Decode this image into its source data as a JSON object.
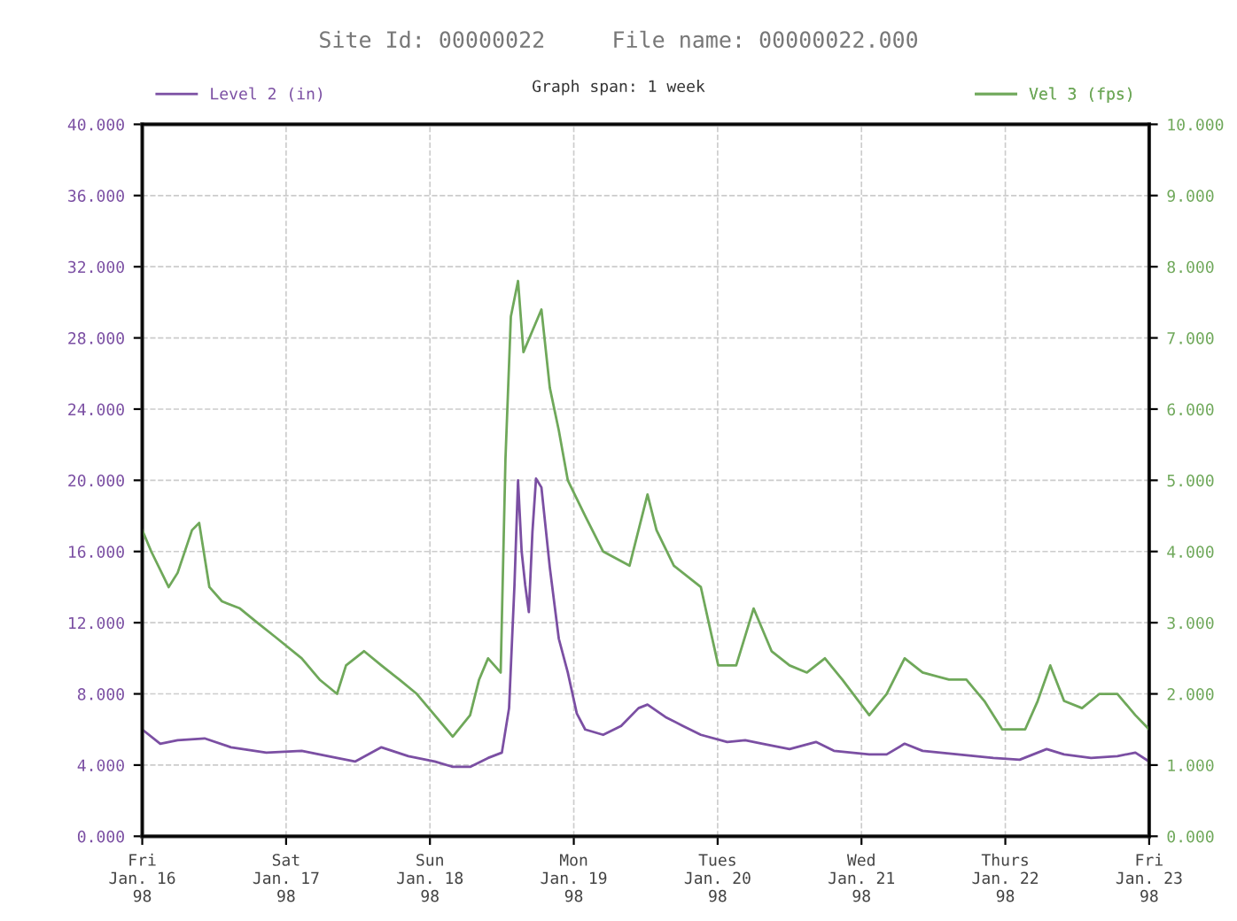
{
  "chart_data": {
    "type": "line",
    "title": "Site Id: 00000022     File name: 00000022.000",
    "annotations": [
      "Graph span: 1 week"
    ],
    "xlim": [
      "1998-01-16",
      "1998-01-23"
    ],
    "xticks": [
      {
        "value": "1998-01-16",
        "label": "Fri\nJan. 16\n98"
      },
      {
        "value": "1998-01-17",
        "label": "Sat\nJan. 17\n98"
      },
      {
        "value": "1998-01-18",
        "label": "Sun\nJan. 18\n98"
      },
      {
        "value": "1998-01-19",
        "label": "Mon\nJan. 19\n98"
      },
      {
        "value": "1998-01-20",
        "label": "Tues\nJan. 20\n98"
      },
      {
        "value": "1998-01-21",
        "label": "Wed\nJan. 21\n98"
      },
      {
        "value": "1998-01-22",
        "label": "Thurs\nJan. 22\n98"
      },
      {
        "value": "1998-01-23",
        "label": "Fri\nJan. 23\n98"
      }
    ],
    "ylim": [
      0,
      40
    ],
    "yticks": [
      {
        "value": 0,
        "label": "0.000"
      },
      {
        "value": 4,
        "label": "4.000"
      },
      {
        "value": 8,
        "label": "8.000"
      },
      {
        "value": 12,
        "label": "12.000"
      },
      {
        "value": 16,
        "label": "16.000"
      },
      {
        "value": 20,
        "label": "20.000"
      },
      {
        "value": 24,
        "label": "24.000"
      },
      {
        "value": 28,
        "label": "28.000"
      },
      {
        "value": 32,
        "label": "32.000"
      },
      {
        "value": 36,
        "label": "36.000"
      },
      {
        "value": 40,
        "label": "40.000"
      }
    ],
    "y2lim": [
      0,
      10
    ],
    "y2ticks": [
      {
        "value": 0,
        "label": "0.000"
      },
      {
        "value": 1,
        "label": "1.000"
      },
      {
        "value": 2,
        "label": "2.000"
      },
      {
        "value": 3,
        "label": "3.000"
      },
      {
        "value": 4,
        "label": "4.000"
      },
      {
        "value": 5,
        "label": "5.000"
      },
      {
        "value": 6,
        "label": "6.000"
      },
      {
        "value": 7,
        "label": "7.000"
      },
      {
        "value": 8,
        "label": "8.000"
      },
      {
        "value": 9,
        "label": "9.000"
      },
      {
        "value": 10,
        "label": "10.000"
      }
    ],
    "grid": true,
    "legend": "top",
    "line_style": "solid",
    "series": [
      {
        "name": "Level 2 (in)",
        "color": "#7b4fa3",
        "x": [
          "1998-01-16T00:00",
          "1998-01-16T03:00",
          "1998-01-16T05:54",
          "1998-01-16T10:24",
          "1998-01-16T14:48",
          "1998-01-16T20:42",
          "1998-01-17T02:36",
          "1998-01-17T08:30",
          "1998-01-17T11:30",
          "1998-01-17T15:54",
          "1998-01-17T20:24",
          "1998-01-18T00:48",
          "1998-01-18T03:48",
          "1998-01-18T06:42",
          "1998-01-18T09:42",
          "1998-01-18T12:00",
          "1998-01-18T13:12",
          "1998-01-18T14:06",
          "1998-01-18T14:42",
          "1998-01-18T15:18",
          "1998-01-18T15:54",
          "1998-01-18T16:30",
          "1998-01-18T17:06",
          "1998-01-18T17:42",
          "1998-01-18T18:36",
          "1998-01-18T20:00",
          "1998-01-18T21:30",
          "1998-01-18T23:00",
          "1998-01-19T00:30",
          "1998-01-19T01:54",
          "1998-01-19T04:54",
          "1998-01-19T07:54",
          "1998-01-19T10:48",
          "1998-01-19T12:18",
          "1998-01-19T15:18",
          "1998-01-19T18:12",
          "1998-01-19T21:12",
          "1998-01-20T01:36",
          "1998-01-20T04:36",
          "1998-01-20T07:30",
          "1998-01-20T12:00",
          "1998-01-20T16:24",
          "1998-01-20T19:24",
          "1998-01-21T01:18",
          "1998-01-21T04:12",
          "1998-01-21T07:12",
          "1998-01-21T10:12",
          "1998-01-21T16:06",
          "1998-01-21T22:00",
          "1998-01-22T02:24",
          "1998-01-22T06:54",
          "1998-01-22T09:48",
          "1998-01-22T14:18",
          "1998-01-22T18:42",
          "1998-01-22T21:42",
          "1998-01-23T00:00"
        ],
        "values": [
          6.0,
          5.2,
          5.4,
          5.5,
          5.0,
          4.7,
          4.8,
          4.4,
          4.2,
          5.0,
          4.5,
          4.2,
          3.9,
          3.9,
          4.4,
          4.7,
          7.2,
          14.1,
          20.0,
          16.0,
          14.1,
          12.6,
          17.1,
          20.1,
          19.6,
          15.1,
          11.1,
          9.2,
          6.9,
          6.0,
          5.7,
          6.2,
          7.2,
          7.4,
          6.7,
          6.2,
          5.7,
          5.3,
          5.4,
          5.2,
          4.9,
          5.3,
          4.8,
          4.6,
          4.6,
          5.2,
          4.8,
          4.6,
          4.4,
          4.3,
          4.9,
          4.6,
          4.4,
          4.5,
          4.7,
          4.2
        ]
      },
      {
        "name": "Vel 3 (fps)",
        "color": "#6fa85a",
        "axis": "y2",
        "x": [
          "1998-01-16T00:00",
          "1998-01-16T01:30",
          "1998-01-16T04:24",
          "1998-01-16T05:54",
          "1998-01-16T08:18",
          "1998-01-16T09:30",
          "1998-01-16T11:12",
          "1998-01-16T13:18",
          "1998-01-16T16:18",
          "1998-01-16T19:12",
          "1998-01-16T22:12",
          "1998-01-17T02:36",
          "1998-01-17T05:36",
          "1998-01-17T08:30",
          "1998-01-17T10:00",
          "1998-01-17T13:00",
          "1998-01-17T15:54",
          "1998-01-17T18:54",
          "1998-01-17T21:48",
          "1998-01-18T00:48",
          "1998-01-18T03:48",
          "1998-01-18T06:42",
          "1998-01-18T08:12",
          "1998-01-18T09:42",
          "1998-01-18T11:48",
          "1998-01-18T12:36",
          "1998-01-18T13:30",
          "1998-01-18T14:42",
          "1998-01-18T15:36",
          "1998-01-18T17:06",
          "1998-01-18T18:36",
          "1998-01-18T20:00",
          "1998-01-18T21:30",
          "1998-01-18T23:00",
          "1998-01-19T01:54",
          "1998-01-19T04:54",
          "1998-01-19T09:18",
          "1998-01-19T12:18",
          "1998-01-19T13:48",
          "1998-01-19T16:42",
          "1998-01-19T21:12",
          "1998-01-20T00:06",
          "1998-01-20T03:06",
          "1998-01-20T06:00",
          "1998-01-20T09:00",
          "1998-01-20T12:00",
          "1998-01-20T14:54",
          "1998-01-20T17:54",
          "1998-01-20T20:48",
          "1998-01-21T01:18",
          "1998-01-21T04:12",
          "1998-01-21T07:12",
          "1998-01-21T10:12",
          "1998-01-21T14:36",
          "1998-01-21T17:30",
          "1998-01-21T20:30",
          "1998-01-21T23:30",
          "1998-01-22T03:18",
          "1998-01-22T05:24",
          "1998-01-22T07:30",
          "1998-01-22T09:48",
          "1998-01-22T12:48",
          "1998-01-22T15:42",
          "1998-01-22T18:42",
          "1998-01-22T21:42",
          "1998-01-23T00:00"
        ],
        "values": [
          4.3,
          4.0,
          3.5,
          3.7,
          4.3,
          4.4,
          3.5,
          3.3,
          3.2,
          3.0,
          2.8,
          2.5,
          2.2,
          2.0,
          2.4,
          2.6,
          2.4,
          2.2,
          2.0,
          1.7,
          1.4,
          1.7,
          2.2,
          2.5,
          2.3,
          5.3,
          7.3,
          7.8,
          6.8,
          7.1,
          7.4,
          6.3,
          5.7,
          5.0,
          4.5,
          4.0,
          3.8,
          4.8,
          4.3,
          3.8,
          3.5,
          2.4,
          2.4,
          3.2,
          2.6,
          2.4,
          2.3,
          2.5,
          2.2,
          1.7,
          2.0,
          2.5,
          2.3,
          2.2,
          2.2,
          1.9,
          1.5,
          1.5,
          1.9,
          2.4,
          1.9,
          1.8,
          2.0,
          2.0,
          1.7,
          1.5
        ]
      }
    ]
  }
}
